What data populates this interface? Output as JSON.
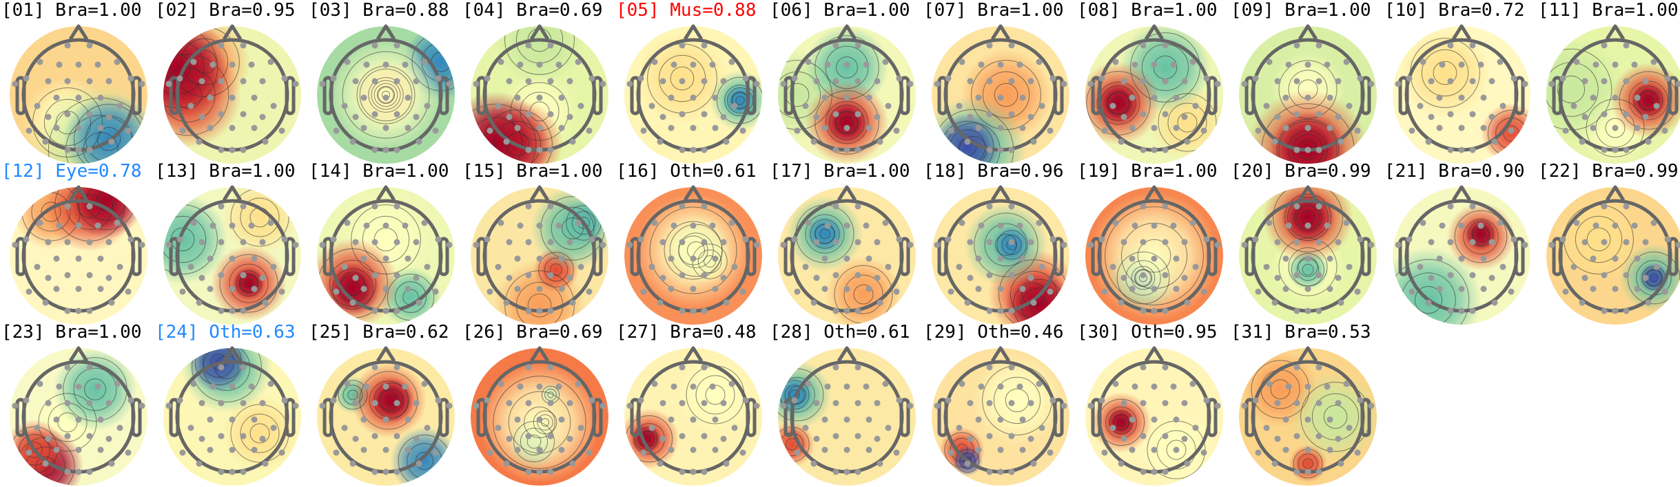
{
  "chart_data": {
    "type": "heatmap",
    "subtype": "topomap-grid",
    "colormap": "Spectral_r",
    "components": [
      {
        "id": "[01]",
        "label": "Bra=1.00",
        "class": "Bra",
        "score": 1.0
      },
      {
        "id": "[02]",
        "label": "Bra=0.95",
        "class": "Bra",
        "score": 0.95
      },
      {
        "id": "[03]",
        "label": "Bra=0.88",
        "class": "Bra",
        "score": 0.88
      },
      {
        "id": "[04]",
        "label": "Bra=0.69",
        "class": "Bra",
        "score": 0.69
      },
      {
        "id": "[05]",
        "label": "Mus=0.88",
        "class": "Mus",
        "score": 0.88,
        "highlight": "#ff0000"
      },
      {
        "id": "[06]",
        "label": "Bra=1.00",
        "class": "Bra",
        "score": 1.0
      },
      {
        "id": "[07]",
        "label": "Bra=1.00",
        "class": "Bra",
        "score": 1.0
      },
      {
        "id": "[08]",
        "label": "Bra=1.00",
        "class": "Bra",
        "score": 1.0
      },
      {
        "id": "[09]",
        "label": "Bra=1.00",
        "class": "Bra",
        "score": 1.0
      },
      {
        "id": "[10]",
        "label": "Bra=0.72",
        "class": "Bra",
        "score": 0.72
      },
      {
        "id": "[11]",
        "label": "Bra=1.00",
        "class": "Bra",
        "score": 1.0
      },
      {
        "id": "[12]",
        "label": "Eye=0.78",
        "class": "Eye",
        "score": 0.78,
        "highlight": "#1e88ff"
      },
      {
        "id": "[13]",
        "label": "Bra=1.00",
        "class": "Bra",
        "score": 1.0
      },
      {
        "id": "[14]",
        "label": "Bra=1.00",
        "class": "Bra",
        "score": 1.0
      },
      {
        "id": "[15]",
        "label": "Bra=1.00",
        "class": "Bra",
        "score": 1.0
      },
      {
        "id": "[16]",
        "label": "Oth=0.61",
        "class": "Oth",
        "score": 0.61
      },
      {
        "id": "[17]",
        "label": "Bra=1.00",
        "class": "Bra",
        "score": 1.0
      },
      {
        "id": "[18]",
        "label": "Bra=0.96",
        "class": "Bra",
        "score": 0.96
      },
      {
        "id": "[19]",
        "label": "Bra=1.00",
        "class": "Bra",
        "score": 1.0
      },
      {
        "id": "[20]",
        "label": "Bra=0.99",
        "class": "Bra",
        "score": 0.99
      },
      {
        "id": "[21]",
        "label": "Bra=0.90",
        "class": "Bra",
        "score": 0.9
      },
      {
        "id": "[22]",
        "label": "Bra=0.99",
        "class": "Bra",
        "score": 0.99
      },
      {
        "id": "[23]",
        "label": "Bra=1.00",
        "class": "Bra",
        "score": 1.0
      },
      {
        "id": "[24]",
        "label": "Oth=0.63",
        "class": "Oth",
        "score": 0.63,
        "highlight": "#1e88ff"
      },
      {
        "id": "[25]",
        "label": "Bra=0.62",
        "class": "Bra",
        "score": 0.62
      },
      {
        "id": "[26]",
        "label": "Bra=0.69",
        "class": "Bra",
        "score": 0.69
      },
      {
        "id": "[27]",
        "label": "Bra=0.48",
        "class": "Bra",
        "score": 0.48
      },
      {
        "id": "[28]",
        "label": "Oth=0.61",
        "class": "Oth",
        "score": 0.61
      },
      {
        "id": "[29]",
        "label": "Oth=0.46",
        "class": "Oth",
        "score": 0.46
      },
      {
        "id": "[30]",
        "label": "Oth=0.95",
        "class": "Oth",
        "score": 0.95
      },
      {
        "id": "[31]",
        "label": "Bra=0.53",
        "class": "Bra",
        "score": 0.53
      }
    ]
  },
  "colors": {
    "default_title": "#000000",
    "head_outline": "#666666",
    "electrode": "#999999"
  }
}
